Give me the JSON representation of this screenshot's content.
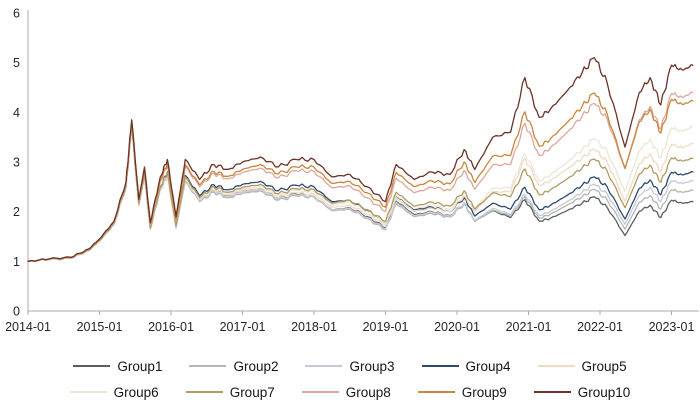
{
  "page": {
    "background": "#ffffff",
    "description_visible_elements": "line chart of 10 cumulative value series, y axis 0-6, x axis 2014-01 to 2023-01, legend with Group1..Group10 below"
  },
  "chart_data": {
    "type": "line",
    "title": "",
    "xlabel": "",
    "ylabel": "",
    "ylim": [
      0,
      6
    ],
    "y_ticks": [
      0,
      1,
      2,
      3,
      4,
      5,
      6
    ],
    "x_ticks": [
      2014,
      2015,
      2016,
      2017,
      2018,
      2019,
      2020,
      2021,
      2022,
      2023
    ],
    "x_tick_labels": [
      "2014-01",
      "2015-01",
      "2016-01",
      "2017-01",
      "2018-01",
      "2019-01",
      "2020-01",
      "2021-01",
      "2022-01",
      "2023-01"
    ],
    "grid": false,
    "legend_position": "bottom, two centered rows of five",
    "axis_color": "#ababab",
    "tick_label_color": "#262626",
    "x": [
      2014.0,
      2014.3,
      2014.6,
      2014.85,
      2015.0,
      2015.2,
      2015.37,
      2015.45,
      2015.55,
      2015.63,
      2015.71,
      2015.85,
      2015.95,
      2016.07,
      2016.2,
      2016.4,
      2016.6,
      2016.8,
      2017.0,
      2017.25,
      2017.5,
      2017.75,
      2018.0,
      2018.25,
      2018.5,
      2018.75,
      2019.0,
      2019.15,
      2019.4,
      2019.65,
      2019.9,
      2020.1,
      2020.25,
      2020.5,
      2020.75,
      2020.95,
      2021.15,
      2021.3,
      2021.55,
      2021.75,
      2021.92,
      2022.1,
      2022.35,
      2022.55,
      2022.7,
      2022.85,
      2023.0,
      2023.15,
      2023.3
    ],
    "series": [
      {
        "name": "Group1",
        "color": "#5a5e63",
        "values": [
          1.0,
          1.04,
          1.06,
          1.22,
          1.41,
          1.74,
          2.5,
          3.7,
          2.13,
          2.72,
          1.65,
          2.46,
          2.74,
          1.68,
          2.64,
          2.23,
          2.44,
          2.33,
          2.43,
          2.47,
          2.27,
          2.35,
          2.3,
          2.04,
          2.08,
          1.9,
          1.67,
          2.21,
          1.94,
          2.0,
          1.92,
          2.17,
          1.81,
          2.02,
          1.88,
          2.24,
          1.81,
          1.86,
          2.03,
          2.17,
          2.3,
          2.09,
          1.52,
          2.01,
          2.13,
          1.88,
          2.23,
          2.17,
          2.2
        ]
      },
      {
        "name": "Group2",
        "color": "#b4b7ae",
        "values": [
          1.0,
          1.04,
          1.06,
          1.22,
          1.41,
          1.74,
          2.5,
          3.7,
          2.13,
          2.71,
          1.64,
          2.44,
          2.72,
          1.66,
          2.61,
          2.2,
          2.39,
          2.28,
          2.37,
          2.42,
          2.23,
          2.32,
          2.29,
          2.02,
          2.05,
          1.86,
          1.63,
          2.16,
          1.9,
          1.96,
          1.89,
          2.15,
          1.8,
          2.03,
          1.91,
          2.3,
          1.87,
          1.94,
          2.14,
          2.3,
          2.45,
          2.24,
          1.65,
          2.19,
          2.33,
          2.05,
          2.44,
          2.39,
          2.43
        ]
      },
      {
        "name": "Group3",
        "color": "#c6c9d7",
        "values": [
          1.0,
          1.04,
          1.06,
          1.22,
          1.41,
          1.74,
          2.5,
          3.7,
          2.13,
          2.72,
          1.65,
          2.45,
          2.73,
          1.67,
          2.64,
          2.22,
          2.42,
          2.31,
          2.4,
          2.45,
          2.26,
          2.34,
          2.3,
          2.04,
          2.07,
          1.88,
          1.65,
          2.19,
          1.92,
          1.99,
          1.91,
          2.18,
          1.82,
          2.07,
          1.94,
          2.35,
          1.92,
          2.0,
          2.21,
          2.39,
          2.55,
          2.36,
          1.75,
          2.33,
          2.49,
          2.2,
          2.62,
          2.57,
          2.62
        ]
      },
      {
        "name": "Group4",
        "color": "#2e4a70",
        "values": [
          1.0,
          1.04,
          1.06,
          1.22,
          1.42,
          1.75,
          2.51,
          3.72,
          2.15,
          2.75,
          1.67,
          2.5,
          2.8,
          1.72,
          2.73,
          2.32,
          2.54,
          2.44,
          2.55,
          2.61,
          2.42,
          2.53,
          2.5,
          2.2,
          2.23,
          2.01,
          1.76,
          2.32,
          2.04,
          2.09,
          2.0,
          2.28,
          1.91,
          2.17,
          2.05,
          2.49,
          2.04,
          2.12,
          2.34,
          2.53,
          2.7,
          2.5,
          1.85,
          2.47,
          2.64,
          2.34,
          2.79,
          2.74,
          2.8
        ]
      },
      {
        "name": "Group5",
        "color": "#eddcc3",
        "values": [
          1.0,
          1.04,
          1.06,
          1.22,
          1.42,
          1.75,
          2.51,
          3.72,
          2.14,
          2.73,
          1.66,
          2.47,
          2.75,
          1.69,
          2.66,
          2.24,
          2.45,
          2.34,
          2.43,
          2.48,
          2.29,
          2.38,
          2.35,
          2.09,
          2.13,
          1.95,
          1.72,
          2.27,
          2.0,
          2.07,
          2.0,
          2.32,
          2.0,
          2.4,
          2.4,
          3.07,
          2.53,
          2.62,
          2.87,
          3.08,
          3.26,
          3.0,
          2.21,
          2.96,
          3.17,
          2.8,
          3.35,
          3.29,
          3.37
        ]
      },
      {
        "name": "Group6",
        "color": "#eae7d8",
        "values": [
          1.0,
          1.04,
          1.07,
          1.23,
          1.42,
          1.76,
          2.53,
          3.73,
          2.16,
          2.75,
          1.67,
          2.49,
          2.78,
          1.7,
          2.69,
          2.27,
          2.48,
          2.37,
          2.46,
          2.52,
          2.33,
          2.43,
          2.41,
          2.14,
          2.19,
          2.0,
          1.76,
          2.33,
          2.06,
          2.13,
          2.05,
          2.38,
          2.06,
          2.47,
          2.48,
          3.17,
          2.62,
          2.73,
          3.01,
          3.25,
          3.47,
          3.22,
          2.41,
          3.23,
          3.46,
          3.08,
          3.68,
          3.62,
          3.71
        ]
      },
      {
        "name": "Group7",
        "color": "#b29a62",
        "values": [
          1.0,
          1.04,
          1.07,
          1.23,
          1.42,
          1.76,
          2.53,
          3.73,
          2.16,
          2.75,
          1.67,
          2.49,
          2.78,
          1.71,
          2.7,
          2.28,
          2.5,
          2.39,
          2.49,
          2.55,
          2.36,
          2.46,
          2.44,
          2.17,
          2.23,
          2.04,
          1.8,
          2.39,
          2.11,
          2.19,
          2.11,
          2.42,
          2.05,
          2.38,
          2.3,
          2.86,
          2.34,
          2.43,
          2.67,
          2.88,
          3.06,
          2.82,
          2.08,
          2.76,
          2.94,
          2.59,
          3.08,
          3.02,
          3.07
        ]
      },
      {
        "name": "Group8",
        "color": "#dda79a",
        "values": [
          1.0,
          1.05,
          1.07,
          1.24,
          1.44,
          1.78,
          2.56,
          3.79,
          2.21,
          2.83,
          1.73,
          2.61,
          2.94,
          1.82,
          2.91,
          2.5,
          2.77,
          2.66,
          2.79,
          2.88,
          2.68,
          2.82,
          2.81,
          2.48,
          2.52,
          2.28,
          2.0,
          2.67,
          2.38,
          2.49,
          2.43,
          2.83,
          2.45,
          2.94,
          2.95,
          3.78,
          3.13,
          3.27,
          3.61,
          3.92,
          4.18,
          3.87,
          2.87,
          3.85,
          4.12,
          3.66,
          4.38,
          4.3,
          4.4
        ]
      },
      {
        "name": "Group9",
        "color": "#c8863e",
        "values": [
          1.0,
          1.05,
          1.08,
          1.24,
          1.44,
          1.79,
          2.58,
          3.81,
          2.22,
          2.85,
          1.75,
          2.64,
          2.97,
          1.84,
          2.94,
          2.54,
          2.81,
          2.71,
          2.85,
          2.95,
          2.76,
          2.9,
          2.9,
          2.57,
          2.61,
          2.38,
          2.09,
          2.79,
          2.5,
          2.62,
          2.56,
          3.0,
          2.59,
          3.12,
          3.13,
          4.01,
          3.32,
          3.45,
          3.81,
          4.12,
          4.39,
          3.97,
          2.87,
          3.81,
          4.06,
          3.58,
          4.26,
          4.16,
          4.23
        ]
      },
      {
        "name": "Group10",
        "color": "#6b3226",
        "values": [
          1.0,
          1.05,
          1.08,
          1.25,
          1.45,
          1.8,
          2.6,
          3.85,
          2.25,
          2.9,
          1.78,
          2.7,
          3.05,
          1.9,
          3.05,
          2.65,
          2.95,
          2.85,
          3.0,
          3.1,
          2.9,
          3.05,
          3.05,
          2.7,
          2.75,
          2.5,
          2.2,
          2.95,
          2.65,
          2.8,
          2.75,
          3.25,
          2.85,
          3.5,
          3.6,
          4.7,
          3.9,
          4.05,
          4.45,
          4.8,
          5.1,
          4.6,
          3.3,
          4.4,
          4.7,
          4.15,
          4.95,
          4.85,
          4.95
        ]
      }
    ],
    "legend_rows": [
      [
        "Group1",
        "Group2",
        "Group3",
        "Group4",
        "Group5"
      ],
      [
        "Group6",
        "Group7",
        "Group8",
        "Group9",
        "Group10"
      ]
    ]
  }
}
